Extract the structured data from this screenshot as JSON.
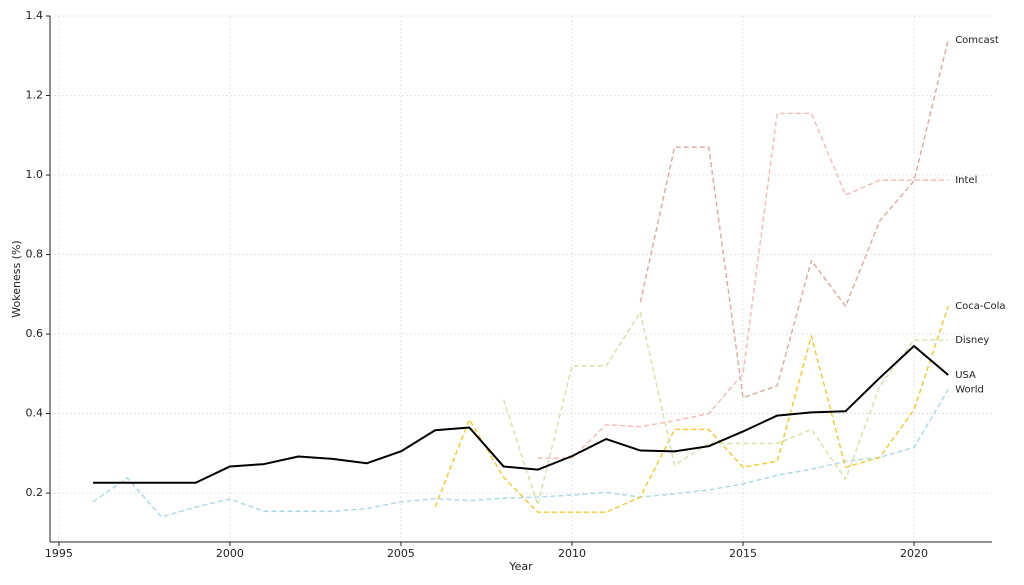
{
  "chart_data": {
    "type": "line",
    "xlabel": "Year",
    "ylabel": "Wokeness (%)",
    "x": [
      1996,
      1997,
      1998,
      1999,
      2000,
      2001,
      2002,
      2003,
      2004,
      2005,
      2006,
      2007,
      2008,
      2009,
      2010,
      2011,
      2012,
      2013,
      2014,
      2015,
      2016,
      2017,
      2018,
      2019,
      2020,
      2021
    ],
    "xlim": [
      1994.74,
      2022.28
    ],
    "xticks": [
      1995,
      2000,
      2005,
      2010,
      2015,
      2020
    ],
    "ylim": [
      0.077,
      1.4
    ],
    "yticks": [
      0.2,
      0.4,
      0.6,
      0.8,
      {
        "value": 1,
        "label": "1.0"
      },
      1.2,
      1.4
    ],
    "grid": true,
    "series": [
      {
        "name": "World",
        "color": "#a9d9e8",
        "dashed": true,
        "values": [
          0.178,
          0.238,
          0.14,
          0.165,
          0.185,
          0.154,
          0.154,
          0.154,
          0.161,
          0.178,
          0.186,
          0.181,
          0.187,
          0.19,
          0.195,
          0.202,
          0.19,
          0.198,
          0.208,
          0.223,
          0.245,
          0.26,
          0.28,
          0.29,
          0.315,
          0.46
        ]
      },
      {
        "name": "Comcast",
        "color": "#dcab9d",
        "dashed": true,
        "values": [
          null,
          null,
          null,
          null,
          null,
          null,
          null,
          null,
          null,
          null,
          null,
          null,
          null,
          null,
          null,
          null,
          0.68,
          1.07,
          1.07,
          0.44,
          0.47,
          0.785,
          0.67,
          0.885,
          0.985,
          1.34
        ]
      },
      {
        "name": "Intel",
        "color": "#f7b9b2",
        "dashed": true,
        "values": [
          null,
          null,
          null,
          null,
          null,
          null,
          null,
          null,
          null,
          null,
          null,
          null,
          null,
          0.288,
          0.288,
          0.372,
          0.367,
          0.382,
          0.4,
          0.5,
          1.155,
          1.155,
          0.95,
          0.987,
          0.987,
          0.987
        ]
      },
      {
        "name": "Coca-Cola",
        "color": "#f6c924",
        "dashed": true,
        "values": [
          null,
          null,
          null,
          null,
          null,
          null,
          null,
          null,
          null,
          null,
          0.165,
          0.385,
          0.24,
          0.152,
          0.152,
          0.152,
          0.19,
          0.36,
          0.36,
          0.265,
          0.28,
          0.595,
          0.265,
          0.29,
          0.41,
          0.67
        ]
      },
      {
        "name": "Disney",
        "color": "#d3e2a5",
        "dashed": true,
        "values": [
          null,
          null,
          null,
          null,
          null,
          null,
          null,
          null,
          null,
          null,
          null,
          null,
          0.435,
          0.17,
          0.52,
          0.52,
          0.655,
          0.27,
          0.325,
          0.325,
          0.325,
          0.36,
          0.235,
          0.47,
          0.585,
          0.585
        ]
      },
      {
        "name": "USA",
        "color": "#000000",
        "dashed": false,
        "values": [
          0.226,
          0.226,
          0.226,
          0.226,
          0.267,
          0.273,
          0.292,
          0.286,
          0.275,
          0.305,
          0.358,
          0.365,
          0.267,
          0.259,
          0.293,
          0.336,
          0.307,
          0.305,
          0.318,
          0.355,
          0.395,
          0.403,
          0.406,
          0.49,
          0.57,
          0.497
        ]
      }
    ]
  }
}
